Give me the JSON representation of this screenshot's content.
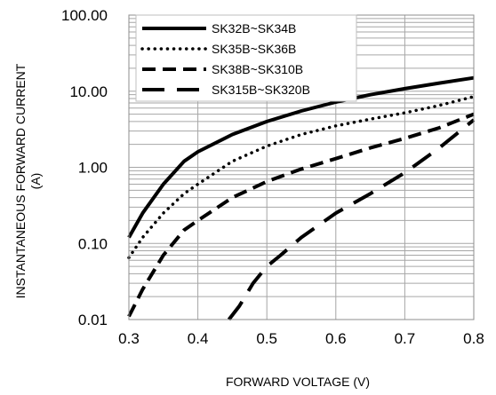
{
  "chart_data": {
    "type": "line",
    "title": "",
    "xlabel": "FORWARD VOLTAGE (V)",
    "ylabel_line1": "INSTANTANEOUS FORWARD CURRENT",
    "ylabel_line2": "(A)",
    "xlim": [
      0.3,
      0.8
    ],
    "ylim": [
      0.01,
      100
    ],
    "y_scale": "log",
    "grid": true,
    "legend_position": "top-left",
    "x_ticks": [
      "0.3",
      "0.4",
      "0.5",
      "0.6",
      "0.7",
      "0.8"
    ],
    "y_ticks": [
      "0.01",
      "0.10",
      "1.00",
      "10.00",
      "100.00"
    ],
    "series": [
      {
        "name": "SK32B~SK34B",
        "dash": "solid",
        "x": [
          0.3,
          0.32,
          0.35,
          0.38,
          0.4,
          0.45,
          0.5,
          0.55,
          0.6,
          0.65,
          0.7,
          0.75,
          0.8
        ],
        "y": [
          0.12,
          0.25,
          0.6,
          1.2,
          1.6,
          2.7,
          4.0,
          5.5,
          7.2,
          9.0,
          10.8,
          12.8,
          15.0
        ]
      },
      {
        "name": "SK35B~SK36B",
        "dash": "dot",
        "x": [
          0.3,
          0.32,
          0.35,
          0.38,
          0.4,
          0.45,
          0.5,
          0.55,
          0.6,
          0.65,
          0.7,
          0.75,
          0.8
        ],
        "y": [
          0.065,
          0.12,
          0.25,
          0.45,
          0.6,
          1.2,
          1.9,
          2.7,
          3.5,
          4.3,
          5.2,
          6.5,
          8.5
        ]
      },
      {
        "name": "SK38B~SK310B",
        "dash": "dash",
        "x": [
          0.3,
          0.32,
          0.35,
          0.38,
          0.4,
          0.45,
          0.5,
          0.55,
          0.6,
          0.65,
          0.7,
          0.75,
          0.8
        ],
        "y": [
          0.011,
          0.025,
          0.07,
          0.15,
          0.2,
          0.4,
          0.65,
          0.95,
          1.3,
          1.8,
          2.4,
          3.3,
          5.0
        ]
      },
      {
        "name": "SK315B~SK320B",
        "dash": "longdash",
        "x": [
          0.445,
          0.46,
          0.48,
          0.5,
          0.52,
          0.55,
          0.6,
          0.65,
          0.7,
          0.75,
          0.8
        ],
        "y": [
          0.01,
          0.015,
          0.03,
          0.05,
          0.07,
          0.12,
          0.25,
          0.45,
          0.85,
          1.8,
          4.2
        ]
      }
    ]
  }
}
